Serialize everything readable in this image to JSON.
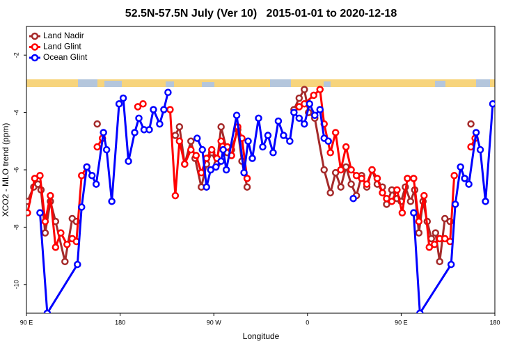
{
  "chart_data": {
    "type": "line",
    "title": "52.5N-57.5N July (Ver 10)   2015-01-01 to 2020-12-18",
    "xlabel": "Longitude",
    "ylabel": "XCO2 - MLO trend (ppm)",
    "xlim": [
      90,
      540
    ],
    "ylim": [
      -11,
      -1
    ],
    "xticks": [
      {
        "value": 90,
        "label": "90 E"
      },
      {
        "value": 180,
        "label": "180"
      },
      {
        "value": 270,
        "label": "90 W"
      },
      {
        "value": 360,
        "label": "0"
      },
      {
        "value": 450,
        "label": "90 E"
      },
      {
        "value": 540,
        "label": "180"
      }
    ],
    "yticks": [
      -10,
      -8,
      -6,
      -4,
      -2
    ],
    "legend": "top-left",
    "series": [
      {
        "name": "Land Nadir",
        "color": "#a52a2a",
        "x": [
          91,
          97,
          101,
          104,
          108,
          113,
          118,
          127,
          134,
          138,
          null,
          158,
          null,
          233,
          237,
          242,
          248,
          252,
          258,
          263,
          268,
          273,
          277,
          283,
          287,
          293,
          297,
          302,
          null,
          347,
          352,
          357,
          361,
          367,
          376,
          382,
          387,
          392,
          397,
          402,
          407,
          412,
          417,
          422,
          427,
          432,
          436,
          441,
          446,
          450,
          454,
          459,
          463,
          467,
          471,
          475,
          479,
          483,
          487,
          492,
          497,
          null,
          517
        ],
        "values": [
          -7.1,
          -6.6,
          -6.5,
          -6.7,
          -8.2,
          -7.1,
          -7.8,
          -9.2,
          -7.7,
          -7.8,
          null,
          -4.4,
          null,
          -4.8,
          -4.5,
          -5.8,
          -5.0,
          -5.6,
          -6.6,
          -5.8,
          -5.4,
          -5.8,
          -4.5,
          -5.4,
          -5.3,
          -4.6,
          -5.7,
          -6.6,
          null,
          -3.9,
          -3.5,
          -3.2,
          -4.0,
          -4.2,
          -6.0,
          -6.8,
          -6.1,
          -6.6,
          -5.9,
          -6.5,
          -6.9,
          -6.2,
          -6.6,
          -6.0,
          -6.5,
          -6.6,
          -7.2,
          -6.7,
          -7.0,
          -7.1,
          -6.6,
          -7.1,
          -6.7,
          -8.2,
          -7.1,
          -7.8,
          -8.4,
          -8.2,
          -9.2,
          -7.7,
          -7.8,
          null,
          -4.4
        ]
      },
      {
        "name": "Land Glint",
        "color": "#ff0000",
        "x": [
          91,
          98,
          103,
          108,
          113,
          118,
          123,
          129,
          134,
          138,
          143,
          148,
          null,
          158,
          163,
          null,
          197,
          202,
          null,
          228,
          233,
          237,
          242,
          248,
          253,
          258,
          263,
          268,
          273,
          277,
          283,
          287,
          293,
          297,
          302,
          null,
          352,
          357,
          366,
          372,
          376,
          382,
          387,
          392,
          397,
          402,
          407,
          412,
          417,
          422,
          427,
          432,
          436,
          441,
          446,
          451,
          456,
          462,
          467,
          472,
          477,
          482,
          487,
          492,
          497,
          501,
          null,
          517,
          521
        ],
        "values": [
          -7.5,
          -6.3,
          -6.2,
          -7.8,
          -6.9,
          -8.7,
          -8.2,
          -8.6,
          -8.4,
          -8.5,
          -6.2,
          -5.9,
          null,
          -5.2,
          -4.9,
          null,
          -3.8,
          -3.7,
          null,
          -3.9,
          -6.9,
          -5.0,
          -5.8,
          -5.3,
          -5.5,
          -6.1,
          -5.6,
          -5.3,
          -5.6,
          -5.0,
          -5.2,
          -5.5,
          -4.5,
          -4.9,
          -6.3,
          null,
          -3.8,
          -3.7,
          -3.4,
          -3.2,
          -4.4,
          -5.4,
          -4.7,
          -6.0,
          -5.2,
          -6.0,
          -6.2,
          -6.3,
          -6.5,
          -6.0,
          -6.3,
          -6.8,
          -7.0,
          -7.1,
          -6.7,
          -7.5,
          -6.3,
          -6.3,
          -7.8,
          -6.9,
          -8.7,
          -8.6,
          -8.4,
          -8.4,
          -8.5,
          -6.2,
          null,
          -5.2,
          -4.9
        ]
      },
      {
        "name": "Ocean Glint",
        "color": "#0000ff",
        "x": [
          103,
          110,
          139,
          143,
          148,
          153,
          157,
          164,
          167,
          172,
          179,
          183,
          188,
          194,
          198,
          203,
          208,
          212,
          218,
          222,
          226,
          null,
          254,
          259,
          263,
          267,
          272,
          277,
          279,
          282,
          292,
          299,
          303,
          307,
          313,
          317,
          322,
          327,
          332,
          337,
          343,
          347,
          352,
          357,
          362,
          367,
          372,
          376,
          380,
          null,
          404,
          null,
          462,
          468,
          498,
          502,
          507,
          511,
          515,
          522,
          526,
          531,
          538
        ],
        "values": [
          -7.5,
          -11.0,
          -9.3,
          -7.3,
          -5.9,
          -6.2,
          -6.5,
          -4.7,
          -5.3,
          -7.1,
          -3.7,
          -3.5,
          -5.7,
          -4.7,
          -4.2,
          -4.6,
          -4.6,
          -3.9,
          -4.4,
          -3.9,
          -3.3,
          null,
          -4.9,
          -5.3,
          -6.6,
          -6.0,
          -5.9,
          -5.7,
          -5.3,
          -6.0,
          -4.1,
          -6.1,
          -5.0,
          -5.6,
          -4.2,
          -5.2,
          -4.8,
          -5.4,
          -4.3,
          -4.8,
          -5.0,
          -4.0,
          -4.2,
          -4.4,
          -3.7,
          -4.1,
          -3.9,
          -4.9,
          -5.0,
          null,
          -7.0,
          null,
          -7.5,
          -11.0,
          -9.3,
          -7.2,
          -5.9,
          -6.3,
          -6.5,
          -4.7,
          -5.3,
          -7.1,
          -3.7
        ]
      }
    ]
  }
}
